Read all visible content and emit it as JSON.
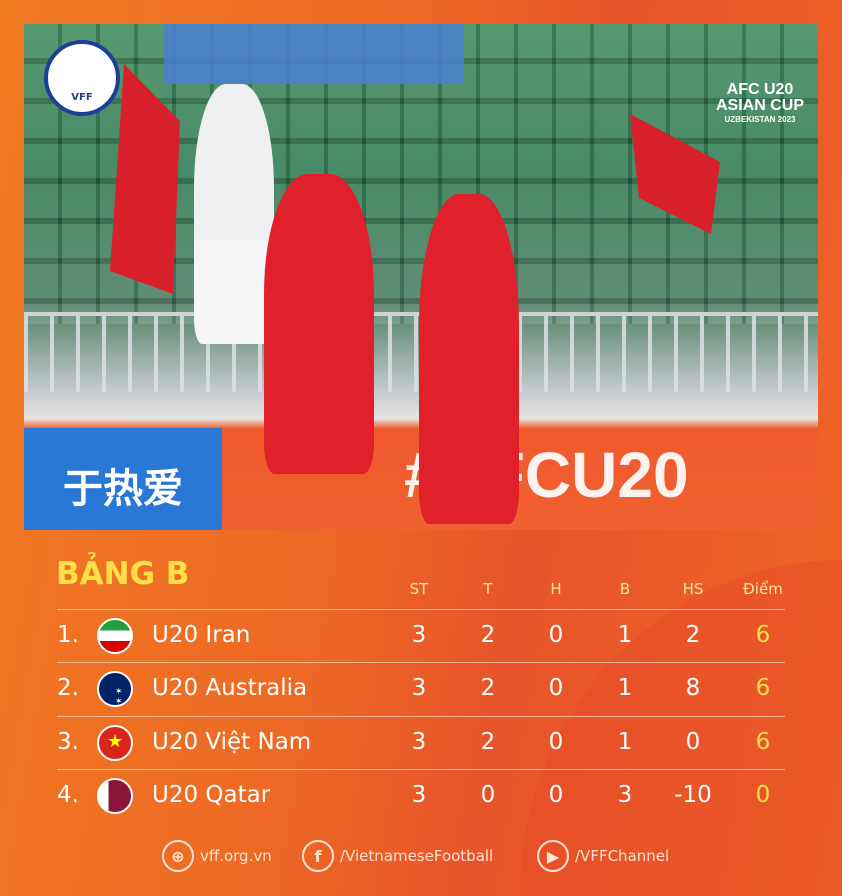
{
  "branding": {
    "vff_logo_text": "VFF",
    "afc_logo": [
      "AFC U20",
      "ASIAN CUP",
      "UZBEKISTAN 2023"
    ]
  },
  "photo": {
    "banner_left": "于热爱",
    "banner_right": "#AFCU20"
  },
  "standings": {
    "title": "BẢNG B",
    "columns": [
      "ST",
      "T",
      "H",
      "B",
      "HS",
      "Điểm"
    ],
    "rows": [
      {
        "rank": "1.",
        "team": "U20 Iran",
        "flag": "iran-flag",
        "st": "3",
        "t": "2",
        "h": "0",
        "b": "1",
        "hs": "2",
        "pts": "6"
      },
      {
        "rank": "2.",
        "team": "U20 Australia",
        "flag": "australia-flag",
        "st": "3",
        "t": "2",
        "h": "0",
        "b": "1",
        "hs": "8",
        "pts": "6"
      },
      {
        "rank": "3.",
        "team": "U20 Việt Nam",
        "flag": "vietnam-flag",
        "st": "3",
        "t": "2",
        "h": "0",
        "b": "1",
        "hs": "0",
        "pts": "6"
      },
      {
        "rank": "4.",
        "team": "U20 Qatar",
        "flag": "qatar-flag",
        "st": "3",
        "t": "0",
        "h": "0",
        "b": "3",
        "hs": "-10",
        "pts": "0"
      }
    ]
  },
  "footer": {
    "website": "vff.org.vn",
    "facebook": "/VietnameseFootball",
    "youtube": "/VFFChannel"
  },
  "colors": {
    "title": "#fde047",
    "points": "#fde047",
    "background": "#ee6a24"
  }
}
